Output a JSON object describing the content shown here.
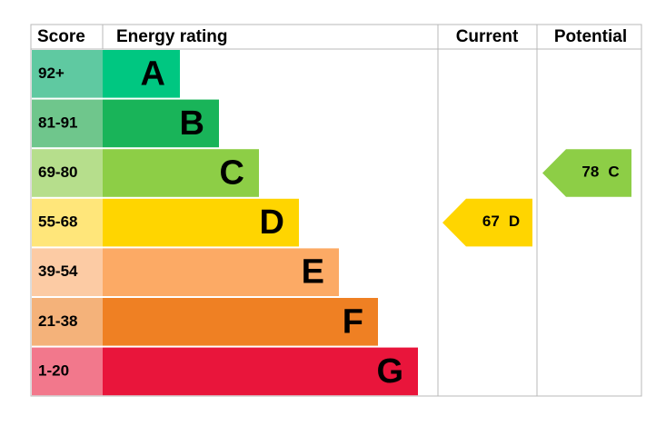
{
  "chart_data": {
    "type": "epc",
    "headers": {
      "score": "Score",
      "rating": "Energy rating",
      "current": "Current",
      "potential": "Potential"
    },
    "bands": [
      {
        "score": "92+",
        "letter": "A",
        "color": "#00c781",
        "score_color": "#5fc9a1"
      },
      {
        "score": "81-91",
        "letter": "B",
        "color": "#19b459",
        "score_color": "#6fc68c"
      },
      {
        "score": "69-80",
        "letter": "C",
        "color": "#8dce46",
        "score_color": "#b6de8c"
      },
      {
        "score": "55-68",
        "letter": "D",
        "color": "#ffd500",
        "score_color": "#ffe67a"
      },
      {
        "score": "39-54",
        "letter": "E",
        "color": "#fcaa65",
        "score_color": "#fccba4"
      },
      {
        "score": "21-38",
        "letter": "F",
        "color": "#ef8023",
        "score_color": "#f4b27a"
      },
      {
        "score": "1-20",
        "letter": "G",
        "color": "#e9153b",
        "score_color": "#f2788c"
      }
    ],
    "current": {
      "value": 67,
      "letter": "D"
    },
    "potential": {
      "value": 78,
      "letter": "C"
    }
  }
}
